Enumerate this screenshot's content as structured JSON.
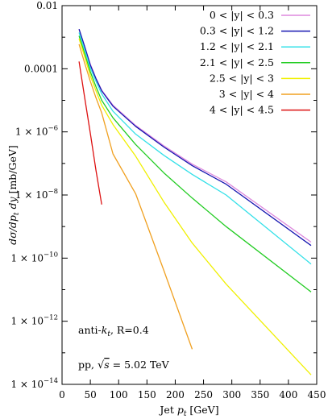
{
  "chart_data": {
    "type": "line",
    "xlabel": "Jet p_t [GeV]",
    "ylabel": "dσ/dp_t dy [mb/GeV]",
    "xlim": [
      0,
      450
    ],
    "ylim": [
      1e-14,
      0.01
    ],
    "y_scale": "log",
    "grid": false,
    "legend_position": "top-right",
    "x_ticks": [
      0,
      50,
      100,
      150,
      200,
      250,
      300,
      350,
      400,
      450
    ],
    "x_tick_labels": [
      "0",
      "50",
      "100",
      "150",
      "200",
      "250",
      "300",
      "350",
      "400",
      "450"
    ],
    "y_ticks": [
      0.01,
      0.0001,
      1e-06,
      1e-08,
      1e-10,
      1e-12,
      1e-14
    ],
    "y_tick_labels": [
      {
        "mantissa": "0.01",
        "exponent": ""
      },
      {
        "mantissa": "0.0001",
        "exponent": ""
      },
      {
        "mantissa": "1 × 10",
        "exponent": "−6"
      },
      {
        "mantissa": "1 × 10",
        "exponent": "−8"
      },
      {
        "mantissa": "1 × 10",
        "exponent": "−10"
      },
      {
        "mantissa": "1 × 10",
        "exponent": "−12"
      },
      {
        "mantissa": "1 × 10",
        "exponent": "−14"
      }
    ],
    "annotations": [
      "anti-k_t, R=0.4",
      "pp, √s = 5.02 TeV"
    ],
    "series": [
      {
        "name": "0 < |y| < 0.3",
        "color": "#dd88dd",
        "x": [
          30,
          40,
          50,
          60,
          70,
          90,
          130,
          180,
          230,
          290,
          440
        ],
        "y": [
          0.0018,
          0.0005,
          0.00014,
          5e-05,
          2.1e-05,
          7e-06,
          1.6e-06,
          3.6e-07,
          9.5e-08,
          2.6e-08,
          3.2e-10
        ]
      },
      {
        "name": "0.3 < |y| < 1.2",
        "color": "#1515b0",
        "x": [
          30,
          40,
          50,
          60,
          70,
          90,
          130,
          180,
          230,
          290,
          440
        ],
        "y": [
          0.0018,
          0.0005,
          0.00013,
          4.8e-05,
          2e-05,
          6.5e-06,
          1.5e-06,
          3.3e-07,
          8.5e-08,
          2.2e-08,
          2.5e-10
        ]
      },
      {
        "name": "1.2 < |y| < 2.1",
        "color": "#33e0e8",
        "x": [
          30,
          40,
          50,
          60,
          70,
          90,
          130,
          180,
          230,
          290,
          440
        ],
        "y": [
          0.0014,
          0.0004,
          0.000105,
          4e-05,
          1.6e-05,
          4.5e-06,
          8.5e-07,
          1.8e-07,
          4.5e-08,
          1e-08,
          6.5e-11
        ]
      },
      {
        "name": "2.1 < |y| < 2.5",
        "color": "#22cc22",
        "x": [
          30,
          40,
          50,
          60,
          70,
          90,
          130,
          180,
          230,
          290,
          440
        ],
        "y": [
          0.0011,
          0.0003,
          8e-05,
          2.7e-05,
          1e-05,
          2.8e-06,
          4e-07,
          5e-08,
          8e-09,
          1e-09,
          8.5e-12
        ]
      },
      {
        "name": "2.5 < |y| < 3",
        "color": "#f0f000",
        "x": [
          30,
          40,
          50,
          60,
          70,
          90,
          130,
          180,
          230,
          290,
          440
        ],
        "y": [
          0.0009,
          0.00024,
          6e-05,
          2e-05,
          7e-06,
          1.7e-06,
          1.7e-07,
          6e-09,
          3e-10,
          1.5e-11,
          2e-14
        ]
      },
      {
        "name": "3 < |y| < 4",
        "color": "#f0a020",
        "x": [
          30,
          40,
          50,
          60,
          70,
          90,
          130,
          180,
          230
        ],
        "y": [
          0.0006,
          0.00015,
          4e-05,
          1.2e-05,
          4e-06,
          2e-07,
          1.1e-08,
          4e-11,
          1.3e-13
        ]
      },
      {
        "name": "4 < |y| < 4.5",
        "color": "#dd1111",
        "x": [
          30,
          40,
          50,
          60,
          70
        ],
        "y": [
          0.00017,
          1.2e-05,
          9e-07,
          6e-08,
          5e-09
        ]
      }
    ]
  }
}
